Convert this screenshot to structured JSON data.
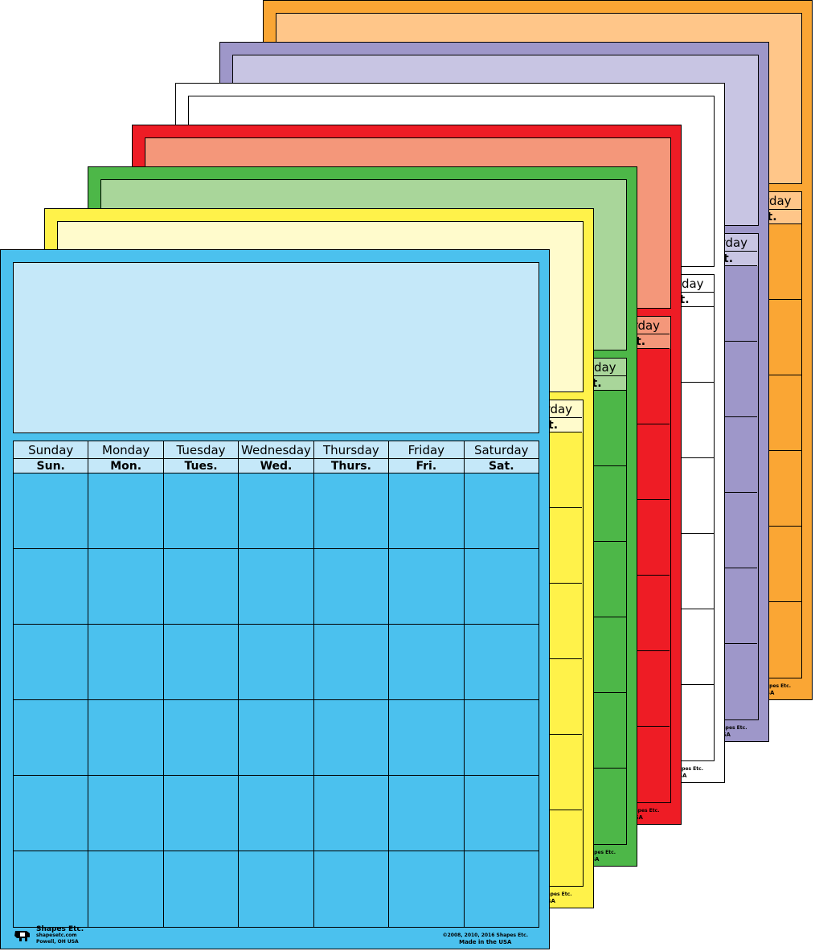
{
  "days": [
    "Sunday",
    "Monday",
    "Tuesday",
    "Wednesday",
    "Thursday",
    "Friday",
    "Saturday"
  ],
  "abbrevs": [
    "Sun.",
    "Mon.",
    "Tues.",
    "Wed.",
    "Thurs.",
    "Fri.",
    "Sat."
  ],
  "rows": 6,
  "footer": {
    "brand": "Shapes Etc.",
    "address_line1": "shapesetc.com",
    "address_line2": "Powell, OH USA",
    "copyright": "©2008, 2010, 2016 Shapes Etc.",
    "made_in": "Made in the USA"
  },
  "sheets": [
    {
      "name": "orange",
      "main": "#FAA634",
      "light": "#FFC689"
    },
    {
      "name": "purple",
      "main": "#9E97C9",
      "light": "#C8C5E3"
    },
    {
      "name": "white",
      "main": "#FFFFFF",
      "light": "#FFFFFF"
    },
    {
      "name": "red",
      "main": "#EE1C25",
      "light": "#F4977A"
    },
    {
      "name": "green",
      "main": "#4DB748",
      "light": "#A9D69A"
    },
    {
      "name": "yellow",
      "main": "#FFF24A",
      "light": "#FFFBCC"
    },
    {
      "name": "blue",
      "main": "#4BC1EE",
      "light": "#C5E8F9"
    }
  ]
}
